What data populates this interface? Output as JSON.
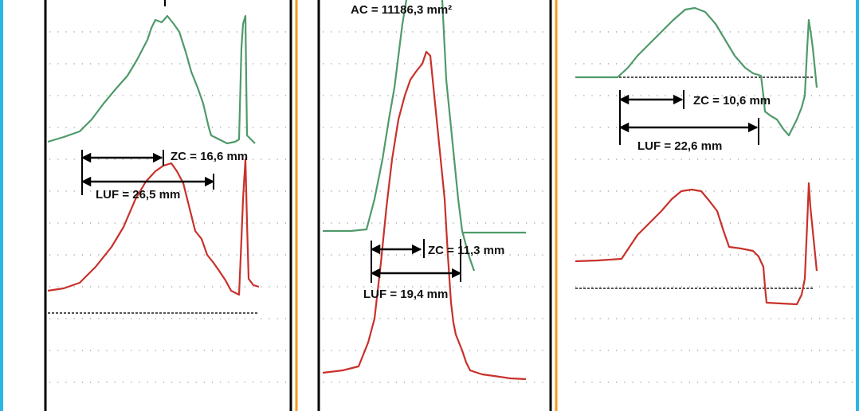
{
  "panels": [
    {
      "zc": "ZC = 16,6 mm",
      "luf": "LUF = 26,5 mm"
    },
    {
      "ac": "AC = 11186,3 mm²",
      "zc": "ZC = 11,3 mm",
      "luf": "LUF = 19,4 mm"
    },
    {
      "zc": "ZC = 10,6 mm",
      "luf": "LUF = 22,6 mm"
    }
  ]
}
